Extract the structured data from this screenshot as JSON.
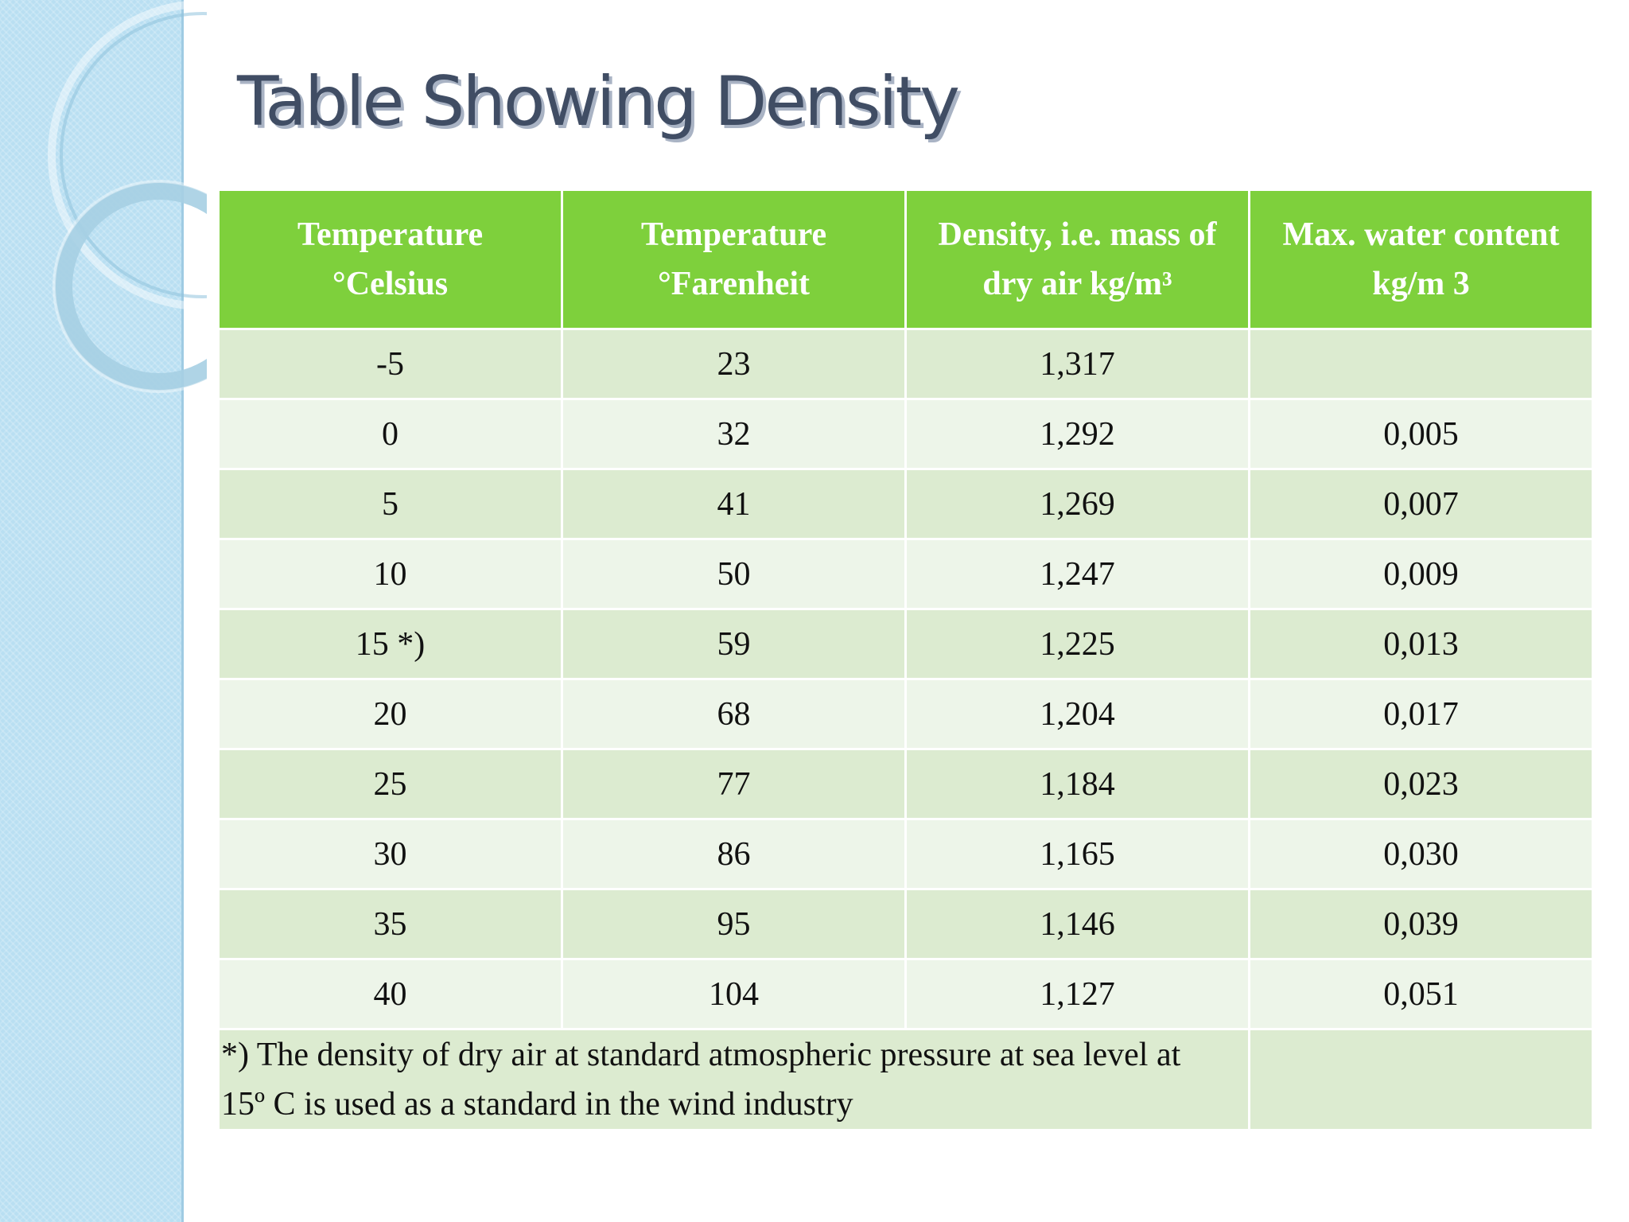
{
  "title": "Table Showing Density",
  "colors": {
    "header_bg": "#7ed03c",
    "row_odd": "#dcebd0",
    "row_even": "#edf5e9",
    "title": "#404d64",
    "side_panel": "#b9dff2"
  },
  "table": {
    "headers": [
      {
        "line1": "Temperature",
        "line2": "°Celsius"
      },
      {
        "line1": "Temperature",
        "line2": "°Farenheit"
      },
      {
        "line1": "Density, i.e. mass of",
        "line2": "dry air kg/m³"
      },
      {
        "line1": "Max. water content",
        "line2": "kg/m 3"
      }
    ],
    "rows": [
      [
        "-5",
        "23",
        "1,317",
        ""
      ],
      [
        "0",
        "32",
        "1,292",
        "0,005"
      ],
      [
        "5",
        "41",
        "1,269",
        "0,007"
      ],
      [
        "10",
        "50",
        "1,247",
        "0,009"
      ],
      [
        "15 *)",
        "59",
        "1,225",
        "0,013"
      ],
      [
        "20",
        "68",
        "1,204",
        "0,017"
      ],
      [
        "25",
        "77",
        "1,184",
        "0,023"
      ],
      [
        "30",
        "86",
        "1,165",
        "0,030"
      ],
      [
        "35",
        "95",
        "1,146",
        "0,039"
      ],
      [
        "40",
        "104",
        "1,127",
        "0,051"
      ]
    ],
    "footnote": {
      "line1": "*) The density of dry air at standard atmospheric pressure at sea level at",
      "line2": "15º C is used as a standard in the wind industry"
    }
  }
}
